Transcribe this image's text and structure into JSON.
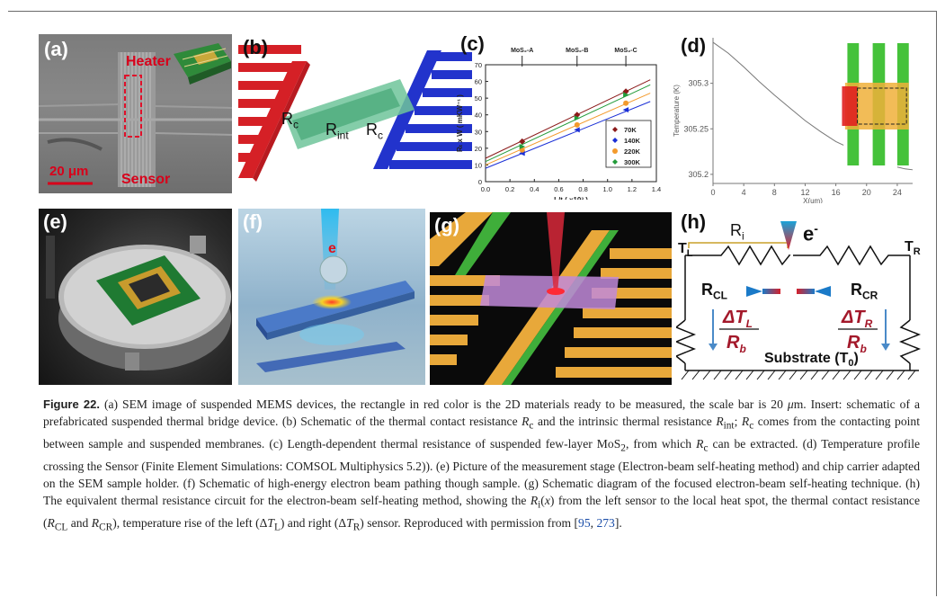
{
  "panels": {
    "a": {
      "label": "(a)",
      "heater": "Heater",
      "sensor": "Sensor",
      "scale": "20 μm"
    },
    "b": {
      "label": "(b)",
      "rc_left": "R",
      "rc_left_sub": "c",
      "rint": "R",
      "rint_sub": "int",
      "rc_right": "R",
      "rc_right_sub": "c"
    },
    "c": {
      "label": "(c)"
    },
    "d": {
      "label": "(d)"
    },
    "e": {
      "label": "(e)"
    },
    "f": {
      "label": "(f)",
      "electron": "e"
    },
    "g": {
      "label": "(g)"
    },
    "h": {
      "label": "(h)",
      "ri": "R",
      "ri_sub": "i",
      "electron": "e",
      "electron_sup": "-",
      "tl": "T",
      "tl_sub": "L",
      "tr": "T",
      "tr_sub": "R",
      "rcl": "R",
      "rcl_sub": "CL",
      "rcr": "R",
      "rcr_sub": "CR",
      "dtl": "ΔT",
      "dtl_sub": "L",
      "rb": "R",
      "rb_sub": "b",
      "dtr": "ΔT",
      "dtr_sub": "R",
      "substrate": "Substrate (T",
      "substrate_sub": "0",
      "substrate_end": ")"
    }
  },
  "chart_data": [
    {
      "type": "line",
      "panel": "c",
      "xlabel": "L/t ( x10³ )",
      "ylabel": "Rₜ x W ( mKW⁻¹ )",
      "xlim": [
        0.0,
        1.4
      ],
      "ylim": [
        0,
        70
      ],
      "xticks": [
        "0.0",
        "0.2",
        "0.4",
        "0.6",
        "0.8",
        "1.0",
        "1.2",
        "1.4"
      ],
      "yticks": [
        "0",
        "10",
        "20",
        "30",
        "40",
        "50",
        "60",
        "70"
      ],
      "annotations": [
        "MoS₂-A",
        "MoS₂-B",
        "MoS₂-C"
      ],
      "annotation_x": [
        0.3,
        0.75,
        1.15
      ],
      "series": [
        {
          "name": "70K",
          "color": "#8b1a1a",
          "marker": "diamond",
          "x": [
            0.3,
            0.75,
            1.15
          ],
          "y": [
            24,
            40,
            54
          ],
          "fit": [
            [
              0,
              14
            ],
            [
              1.35,
              61
            ]
          ]
        },
        {
          "name": "140K",
          "color": "#1a2fd6",
          "marker": "triangle-left",
          "x": [
            0.3,
            0.75,
            1.15
          ],
          "y": [
            17,
            31,
            43
          ],
          "fit": [
            [
              0,
              8
            ],
            [
              1.35,
              48
            ]
          ]
        },
        {
          "name": "220K",
          "color": "#f39a2c",
          "marker": "circle",
          "x": [
            0.3,
            0.75,
            1.15
          ],
          "y": [
            19,
            34,
            47
          ],
          "fit": [
            [
              0,
              10
            ],
            [
              1.35,
              53
            ]
          ]
        },
        {
          "name": "300K",
          "color": "#239b3a",
          "marker": "triangle-right",
          "x": [
            0.3,
            0.75,
            1.15
          ],
          "y": [
            21,
            38,
            52
          ],
          "fit": [
            [
              0,
              12
            ],
            [
              1.35,
              58
            ]
          ]
        }
      ],
      "legend": "bottom-right"
    },
    {
      "type": "line",
      "panel": "d",
      "xlabel": "X(um)",
      "ylabel": "Temperature (K)",
      "xlim": [
        0,
        26
      ],
      "ylim": [
        305.19,
        305.35
      ],
      "xticks": [
        "0",
        "4",
        "8",
        "12",
        "16",
        "20",
        "24"
      ],
      "yticks": [
        "305.2",
        "305.25",
        "305.3"
      ],
      "series": [
        {
          "name": "",
          "color": "#777777",
          "x": [
            0,
            2,
            4,
            6,
            8,
            10,
            12,
            14,
            16,
            17
          ],
          "y": [
            305.345,
            305.333,
            305.318,
            305.302,
            305.287,
            305.273,
            305.259,
            305.247,
            305.236,
            305.232
          ]
        },
        {
          "name": "",
          "color": "#777777",
          "x": [
            24,
            25,
            26
          ],
          "y": [
            305.208,
            305.206,
            305.205
          ]
        }
      ]
    }
  ],
  "caption": {
    "fig_label": "Figure 22.",
    "parts": [
      " (a) SEM image of suspended MEMS devices, the rectangle in red color is the 2D materials ready to be measured, the scale bar is 20 ",
      "μ",
      "m. Insert: schematic of a prefabricated suspended thermal bridge device. (b) Schematic of the thermal contact resistance ",
      "R",
      "c",
      " and the intrinsic thermal resistance ",
      "R",
      "int",
      "; ",
      "R",
      "c",
      " comes from the contacting point between sample and suspended membranes. (c) Length-dependent thermal resistance of suspended few-layer MoS",
      "2",
      ", from which ",
      "R",
      "c",
      " can be extracted. (d) Temperature profile crossing the Sensor (Finite Element Simulations: COMSOL Multiphysics 5.2)). (e) Picture of the measurement stage (Electron-beam self-heating method) and chip carrier adapted on the SEM sample holder. (f) Schematic of high-energy electron beam pathing though sample. (g) Schematic diagram of the focused electron-beam self-heating technique. (h) The equivalent thermal resistance circuit for the electron-beam self-heating method, showing the ",
      "R",
      "i",
      "(",
      "x",
      ") from the left sensor to the local heat spot, the thermal contact resistance (",
      "R",
      "CL",
      " and ",
      "R",
      "CR",
      "), temperature rise of the left (Δ",
      "T",
      "L",
      ") and right (Δ",
      "T",
      "R",
      ") sensor. Reproduced with permission from [",
      "95",
      ", ",
      "273",
      "]."
    ]
  }
}
